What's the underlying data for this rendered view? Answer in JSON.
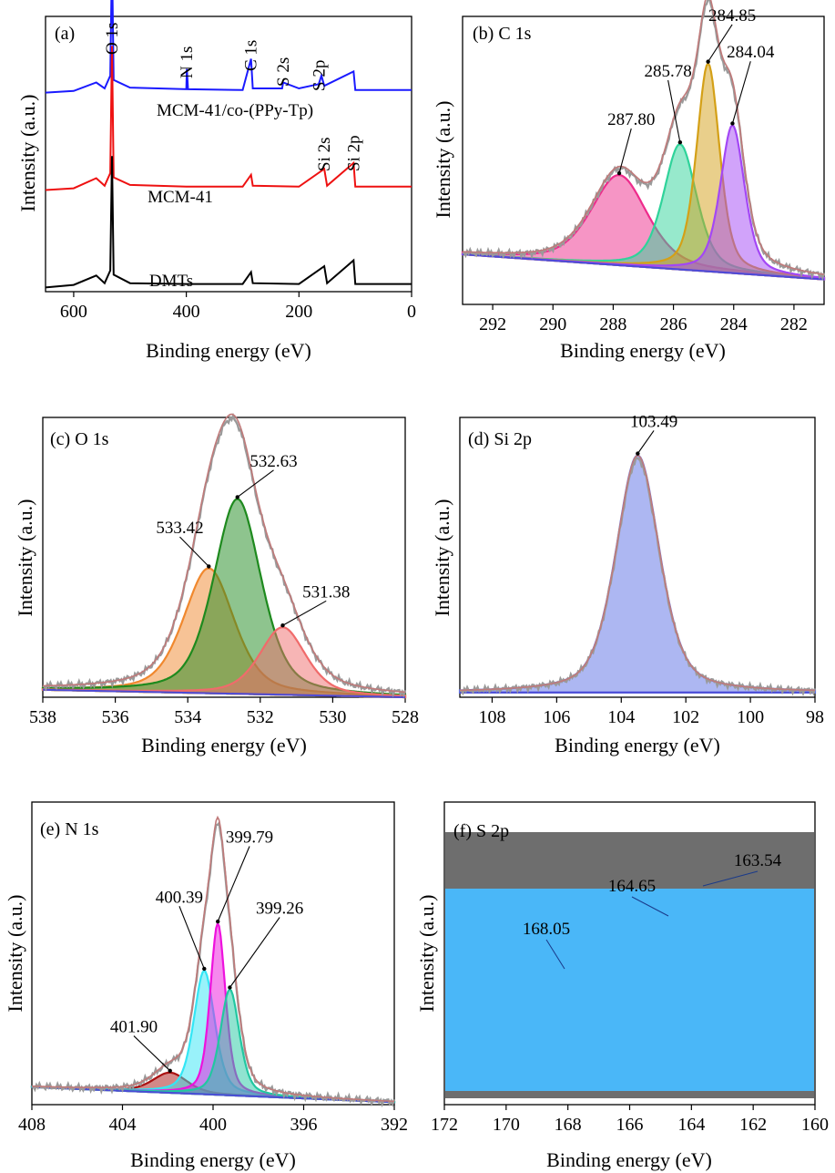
{
  "figure": {
    "ylabel": "Intensity (a.u.)",
    "xlabel": "Binding energy (eV)"
  },
  "chart_data": [
    {
      "id": "a",
      "type": "line",
      "panel_label": "(a)",
      "xlabel": "Binding energy (eV)",
      "ylabel": "Intensity (a.u.)",
      "xlim": [
        650,
        0
      ],
      "ylim": [
        -0.05,
        3.2
      ],
      "xticks": [
        600,
        400,
        200,
        0
      ],
      "reverse_x": true,
      "series": [
        {
          "name": "MCM-41/co-(PPy-Tp)",
          "color": "#1a1aff",
          "offset": 2.3,
          "points": [
            [
              650,
              0
            ],
            [
              600,
              0.02
            ],
            [
              560,
              0.12
            ],
            [
              545,
              0.05
            ],
            [
              535,
              0.2
            ],
            [
              532,
              1.6
            ],
            [
              529,
              0.15
            ],
            [
              500,
              0.06
            ],
            [
              400,
              0.04
            ],
            [
              399,
              0.28
            ],
            [
              397,
              0.04
            ],
            [
              300,
              0.03
            ],
            [
              285,
              0.4
            ],
            [
              282,
              0.05
            ],
            [
              230,
              0.05
            ],
            [
              228,
              0.12
            ],
            [
              200,
              0.05
            ],
            [
              165,
              0.1
            ],
            [
              160,
              0.2
            ],
            [
              155,
              0.08
            ],
            [
              103,
              0.25
            ],
            [
              100,
              0.03
            ],
            [
              25,
              0.03
            ],
            [
              0,
              0.03
            ]
          ]
        },
        {
          "name": "MCM-41",
          "color": "#ee1111",
          "offset": 1.15,
          "points": [
            [
              650,
              0
            ],
            [
              600,
              0.02
            ],
            [
              560,
              0.14
            ],
            [
              545,
              0.05
            ],
            [
              535,
              0.2
            ],
            [
              532,
              1.7
            ],
            [
              529,
              0.15
            ],
            [
              500,
              0.06
            ],
            [
              400,
              0.04
            ],
            [
              300,
              0.04
            ],
            [
              285,
              0.18
            ],
            [
              282,
              0.05
            ],
            [
              200,
              0.04
            ],
            [
              155,
              0.25
            ],
            [
              150,
              0.05
            ],
            [
              103,
              0.32
            ],
            [
              100,
              0.04
            ],
            [
              25,
              0.04
            ],
            [
              0,
              0.04
            ]
          ]
        },
        {
          "name": "DMTs",
          "color": "#000000",
          "offset": 0,
          "points": [
            [
              650,
              0
            ],
            [
              600,
              0.03
            ],
            [
              560,
              0.14
            ],
            [
              545,
              0.05
            ],
            [
              535,
              0.2
            ],
            [
              532,
              1.55
            ],
            [
              529,
              0.15
            ],
            [
              500,
              0.05
            ],
            [
              400,
              0.04
            ],
            [
              300,
              0.04
            ],
            [
              285,
              0.18
            ],
            [
              282,
              0.05
            ],
            [
              200,
              0.04
            ],
            [
              155,
              0.25
            ],
            [
              150,
              0.05
            ],
            [
              103,
              0.32
            ],
            [
              100,
              0.04
            ],
            [
              25,
              0.04
            ],
            [
              0,
              0.04
            ]
          ]
        }
      ],
      "annotations": [
        {
          "text": "O 1s",
          "x": 532
        },
        {
          "text": "N 1s",
          "x": 399
        },
        {
          "text": "C 1s",
          "x": 285
        },
        {
          "text": "S 2s",
          "x": 228
        },
        {
          "text": "S 2p",
          "x": 164
        },
        {
          "text": "Si 2s",
          "x": 155
        },
        {
          "text": "Si 2p",
          "x": 103
        }
      ]
    },
    {
      "id": "b",
      "type": "area",
      "panel_label": "(b) C 1s",
      "xlabel": "Binding energy (eV)",
      "ylabel": "Intensity (a.u.)",
      "xlim": [
        293,
        281
      ],
      "ylim": [
        0,
        1.15
      ],
      "xticks": [
        292,
        290,
        288,
        286,
        284,
        282
      ],
      "reverse_x": true,
      "background": [
        0.2,
        0.1
      ],
      "peaks": [
        {
          "label": "287.80",
          "center": 287.8,
          "height": 0.36,
          "fwhm": 2.2,
          "color": "#ee2b8c"
        },
        {
          "label": "285.78",
          "center": 285.78,
          "height": 0.5,
          "fwhm": 1.3,
          "color": "#2fd39a"
        },
        {
          "label": "284.85",
          "center": 284.85,
          "height": 0.83,
          "fwhm": 0.9,
          "color": "#d4a017"
        },
        {
          "label": "284.04",
          "center": 284.04,
          "height": 0.59,
          "fwhm": 0.95,
          "color": "#a347f5"
        }
      ],
      "label_offsets": [
        [
          -0.4,
          0.2
        ],
        [
          0.4,
          0.27
        ],
        [
          -0.8,
          0.17
        ],
        [
          -0.6,
          0.27
        ]
      ]
    },
    {
      "id": "c",
      "type": "area",
      "panel_label": "(c) O 1s",
      "xlabel": "Binding energy (eV)",
      "ylabel": "Intensity (a.u.)",
      "xlim": [
        538,
        528
      ],
      "ylim": [
        0,
        1.12
      ],
      "xticks": [
        538,
        536,
        534,
        532,
        530,
        528
      ],
      "reverse_x": true,
      "background": [
        0.03,
        0.0
      ],
      "peaks": [
        {
          "label": "533.42",
          "center": 533.42,
          "height": 0.5,
          "fwhm": 1.65,
          "color": "#f0882e"
        },
        {
          "label": "532.63",
          "center": 532.63,
          "height": 0.78,
          "fwhm": 1.55,
          "color": "#1e8a1e"
        },
        {
          "label": "531.38",
          "center": 531.38,
          "height": 0.27,
          "fwhm": 1.5,
          "color": "#f06b6b"
        }
      ],
      "label_offsets": [
        [
          0.8,
          0.14
        ],
        [
          -1.0,
          0.13
        ],
        [
          -1.2,
          0.12
        ]
      ]
    },
    {
      "id": "d",
      "type": "area",
      "panel_label": "(d) Si 2p",
      "xlabel": "Binding energy (eV)",
      "ylabel": "Intensity (a.u.)",
      "xlim": [
        109,
        98
      ],
      "ylim": [
        0,
        1.18
      ],
      "xticks": [
        108,
        106,
        104,
        102,
        100,
        98
      ],
      "reverse_x": true,
      "background": [
        0.02,
        0.02
      ],
      "peaks": [
        {
          "label": "103.49",
          "center": 103.49,
          "height": 1.0,
          "fwhm": 1.6,
          "color": "#5b6fe6"
        }
      ],
      "label_offsets": [
        [
          -0.5,
          0.12
        ]
      ]
    },
    {
      "id": "e",
      "type": "area",
      "panel_label": "(e) N 1s",
      "xlabel": "Binding energy (eV)",
      "ylabel": "Intensity (a.u.)",
      "xlim": [
        408,
        392
      ],
      "ylim": [
        0,
        1.2
      ],
      "xticks": [
        408,
        404,
        400,
        396,
        392
      ],
      "reverse_x": true,
      "background": [
        0.07,
        0.01
      ],
      "peaks": [
        {
          "label": "401.90",
          "center": 401.9,
          "height": 0.08,
          "fwhm": 1.8,
          "color": "#aa1111"
        },
        {
          "label": "400.39",
          "center": 400.39,
          "height": 0.49,
          "fwhm": 1.1,
          "color": "#33e6f5"
        },
        {
          "label": "399.79",
          "center": 399.79,
          "height": 0.68,
          "fwhm": 0.8,
          "color": "#ee11dd"
        },
        {
          "label": "399.26",
          "center": 399.26,
          "height": 0.42,
          "fwhm": 1.0,
          "color": "#22c7a1"
        }
      ],
      "label_offsets": [
        [
          1.6,
          0.16
        ],
        [
          1.1,
          0.27
        ],
        [
          -1.4,
          0.32
        ],
        [
          -2.2,
          0.3
        ]
      ]
    },
    {
      "id": "f",
      "type": "area",
      "panel_label": "(f) S 2p",
      "xlabel": "Binding energy (eV)",
      "ylabel": "Intensity (a.u.)",
      "xlim": [
        172,
        160
      ],
      "ylim": [
        0,
        1.12
      ],
      "xticks": [
        172,
        170,
        168,
        166,
        164,
        162,
        160
      ],
      "reverse_x": true,
      "fill_colors": {
        "band": "#6e6e6e",
        "main": "#4ab7f8"
      },
      "peak_labels": [
        {
          "label": "168.05",
          "x": 168.05
        },
        {
          "label": "164.65",
          "x": 164.65
        },
        {
          "label": "163.54",
          "x": 163.54
        }
      ]
    }
  ]
}
